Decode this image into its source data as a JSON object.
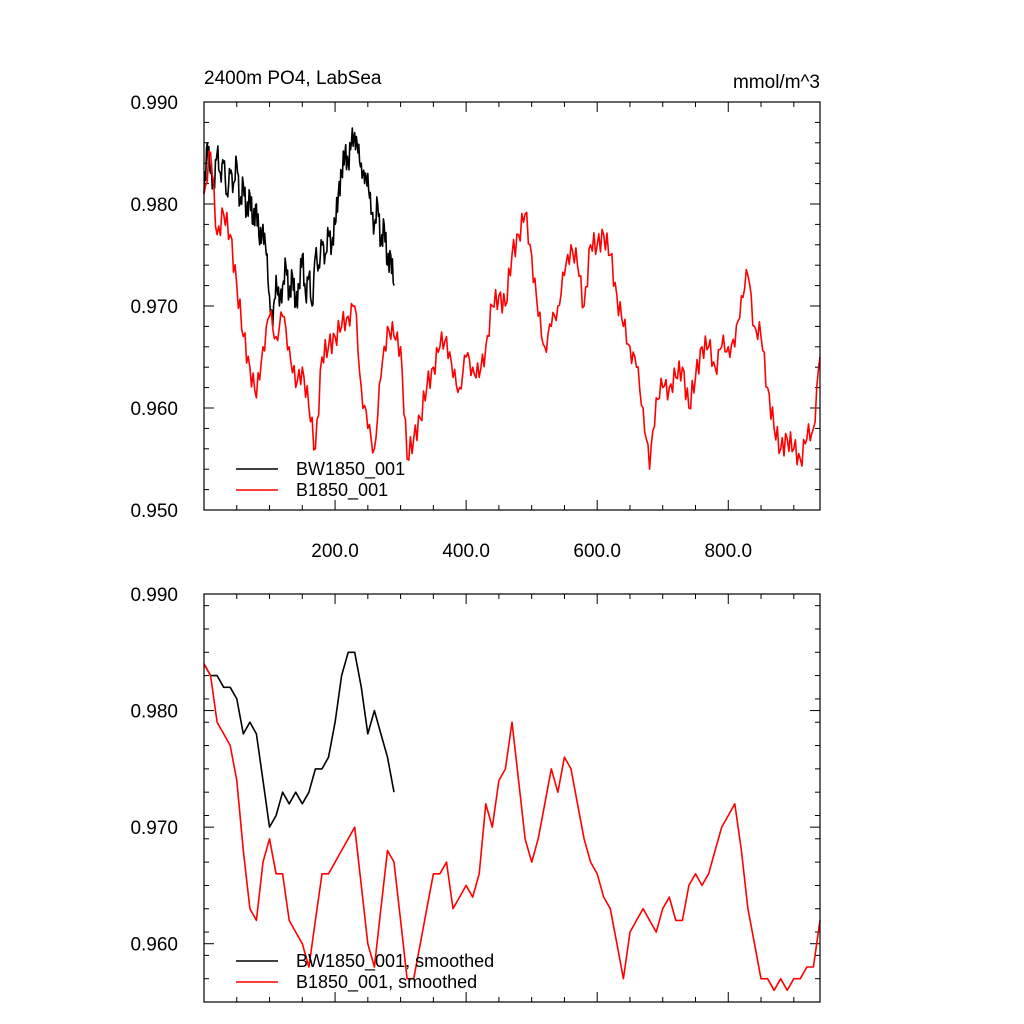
{
  "chart_data": [
    {
      "type": "line",
      "title_left": "2400m PO4, LabSea",
      "title_right": "mmol/m^3",
      "xlabel": "",
      "ylabel": "",
      "xlim": [
        0,
        940
      ],
      "ylim": [
        0.95,
        0.99
      ],
      "xticks": [
        200,
        400,
        600,
        800
      ],
      "xtick_labels": [
        "200.0",
        "400.0",
        "600.0",
        "800.0"
      ],
      "yticks": [
        0.95,
        0.96,
        0.97,
        0.98,
        0.99
      ],
      "ytick_labels": [
        "0.950",
        "0.960",
        "0.970",
        "0.980",
        "0.990"
      ],
      "grid": false,
      "legend_position": "bottom-left",
      "series": [
        {
          "name": "BW1850_001",
          "color": "#000000",
          "x": [
            0,
            5,
            10,
            15,
            20,
            25,
            30,
            35,
            40,
            45,
            50,
            55,
            60,
            65,
            70,
            75,
            80,
            85,
            90,
            95,
            100,
            105,
            110,
            115,
            120,
            125,
            130,
            135,
            140,
            145,
            150,
            155,
            160,
            165,
            170,
            175,
            180,
            185,
            190,
            195,
            200,
            205,
            210,
            215,
            220,
            225,
            230,
            235,
            240,
            245,
            250,
            255,
            260,
            265,
            270,
            275,
            280,
            285,
            290
          ],
          "y": [
            0.981,
            0.986,
            0.983,
            0.982,
            0.985,
            0.983,
            0.984,
            0.981,
            0.983,
            0.982,
            0.984,
            0.98,
            0.982,
            0.979,
            0.981,
            0.978,
            0.98,
            0.976,
            0.978,
            0.975,
            0.971,
            0.968,
            0.973,
            0.97,
            0.972,
            0.974,
            0.971,
            0.973,
            0.97,
            0.972,
            0.975,
            0.971,
            0.973,
            0.97,
            0.975,
            0.974,
            0.976,
            0.975,
            0.977,
            0.976,
            0.978,
            0.981,
            0.983,
            0.985,
            0.984,
            0.986,
            0.987,
            0.985,
            0.984,
            0.982,
            0.983,
            0.979,
            0.978,
            0.98,
            0.976,
            0.978,
            0.974,
            0.975,
            0.972
          ]
        },
        {
          "name": "B1850_001",
          "color": "#ff0000",
          "x": [
            0,
            10,
            20,
            30,
            40,
            50,
            60,
            70,
            80,
            90,
            100,
            110,
            120,
            130,
            140,
            150,
            160,
            170,
            180,
            190,
            200,
            210,
            220,
            230,
            240,
            250,
            260,
            270,
            280,
            290,
            300,
            310,
            320,
            330,
            340,
            350,
            360,
            370,
            380,
            390,
            400,
            410,
            420,
            430,
            440,
            450,
            460,
            470,
            480,
            490,
            500,
            510,
            520,
            530,
            540,
            550,
            560,
            570,
            580,
            590,
            600,
            610,
            620,
            630,
            640,
            650,
            660,
            670,
            680,
            690,
            700,
            710,
            720,
            730,
            740,
            750,
            760,
            770,
            780,
            790,
            800,
            810,
            820,
            830,
            840,
            850,
            860,
            870,
            880,
            890,
            900,
            910,
            920,
            930,
            940
          ],
          "y": [
            0.981,
            0.985,
            0.977,
            0.979,
            0.977,
            0.972,
            0.967,
            0.964,
            0.961,
            0.966,
            0.969,
            0.967,
            0.969,
            0.966,
            0.962,
            0.964,
            0.96,
            0.956,
            0.965,
            0.966,
            0.967,
            0.968,
            0.969,
            0.97,
            0.962,
            0.958,
            0.956,
            0.963,
            0.968,
            0.967,
            0.966,
            0.955,
            0.957,
            0.959,
            0.962,
            0.964,
            0.966,
            0.967,
            0.963,
            0.962,
            0.965,
            0.964,
            0.963,
            0.966,
            0.97,
            0.971,
            0.97,
            0.975,
            0.977,
            0.979,
            0.975,
            0.969,
            0.966,
            0.968,
            0.97,
            0.973,
            0.976,
            0.974,
            0.97,
            0.976,
            0.976,
            0.977,
            0.975,
            0.971,
            0.968,
            0.966,
            0.964,
            0.96,
            0.954,
            0.961,
            0.962,
            0.962,
            0.963,
            0.964,
            0.96,
            0.963,
            0.966,
            0.966,
            0.964,
            0.966,
            0.966,
            0.966,
            0.971,
            0.973,
            0.968,
            0.967,
            0.962,
            0.958,
            0.956,
            0.957,
            0.956,
            0.955,
            0.957,
            0.958,
            0.965
          ]
        }
      ]
    },
    {
      "type": "line",
      "xlabel": "",
      "ylabel": "",
      "xlim": [
        0,
        940
      ],
      "ylim": [
        0.955,
        0.99
      ],
      "yticks": [
        0.96,
        0.97,
        0.98,
        0.99
      ],
      "ytick_labels": [
        "0.960",
        "0.970",
        "0.980",
        "0.990"
      ],
      "xticks": [
        200,
        400,
        600,
        800
      ],
      "grid": false,
      "legend_position": "bottom-left",
      "series": [
        {
          "name": "BW1850_001, smoothed",
          "color": "#000000",
          "x": [
            0,
            10,
            20,
            30,
            40,
            50,
            60,
            70,
            80,
            90,
            100,
            110,
            120,
            130,
            140,
            150,
            160,
            170,
            180,
            190,
            200,
            210,
            220,
            230,
            240,
            250,
            260,
            270,
            280,
            290
          ],
          "y": [
            0.984,
            0.983,
            0.983,
            0.982,
            0.982,
            0.981,
            0.978,
            0.979,
            0.978,
            0.974,
            0.97,
            0.971,
            0.973,
            0.972,
            0.973,
            0.972,
            0.973,
            0.975,
            0.975,
            0.976,
            0.979,
            0.983,
            0.985,
            0.985,
            0.982,
            0.978,
            0.98,
            0.978,
            0.976,
            0.973
          ]
        },
        {
          "name": "B1850_001, smoothed",
          "color": "#ff0000",
          "x": [
            0,
            10,
            20,
            30,
            40,
            50,
            60,
            70,
            80,
            90,
            100,
            110,
            120,
            130,
            140,
            150,
            160,
            170,
            180,
            190,
            200,
            210,
            220,
            230,
            240,
            250,
            260,
            270,
            280,
            290,
            300,
            310,
            320,
            330,
            340,
            350,
            360,
            370,
            380,
            390,
            400,
            410,
            420,
            430,
            440,
            450,
            460,
            470,
            480,
            490,
            500,
            510,
            520,
            530,
            540,
            550,
            560,
            570,
            580,
            590,
            600,
            610,
            620,
            630,
            640,
            650,
            660,
            670,
            680,
            690,
            700,
            710,
            720,
            730,
            740,
            750,
            760,
            770,
            780,
            790,
            800,
            810,
            820,
            830,
            840,
            850,
            860,
            870,
            880,
            890,
            900,
            910,
            920,
            930,
            940
          ],
          "y": [
            0.984,
            0.983,
            0.979,
            0.978,
            0.977,
            0.974,
            0.968,
            0.963,
            0.962,
            0.967,
            0.969,
            0.966,
            0.966,
            0.962,
            0.961,
            0.96,
            0.958,
            0.962,
            0.966,
            0.966,
            0.967,
            0.968,
            0.969,
            0.97,
            0.965,
            0.96,
            0.958,
            0.963,
            0.968,
            0.967,
            0.962,
            0.957,
            0.957,
            0.96,
            0.963,
            0.966,
            0.966,
            0.967,
            0.963,
            0.964,
            0.965,
            0.964,
            0.966,
            0.972,
            0.97,
            0.974,
            0.975,
            0.979,
            0.974,
            0.969,
            0.967,
            0.969,
            0.972,
            0.975,
            0.973,
            0.976,
            0.975,
            0.972,
            0.969,
            0.967,
            0.966,
            0.964,
            0.963,
            0.96,
            0.957,
            0.961,
            0.962,
            0.963,
            0.962,
            0.961,
            0.963,
            0.964,
            0.962,
            0.962,
            0.965,
            0.966,
            0.965,
            0.966,
            0.968,
            0.97,
            0.971,
            0.972,
            0.968,
            0.963,
            0.96,
            0.957,
            0.957,
            0.956,
            0.957,
            0.956,
            0.957,
            0.957,
            0.958,
            0.958,
            0.962
          ]
        }
      ]
    }
  ]
}
